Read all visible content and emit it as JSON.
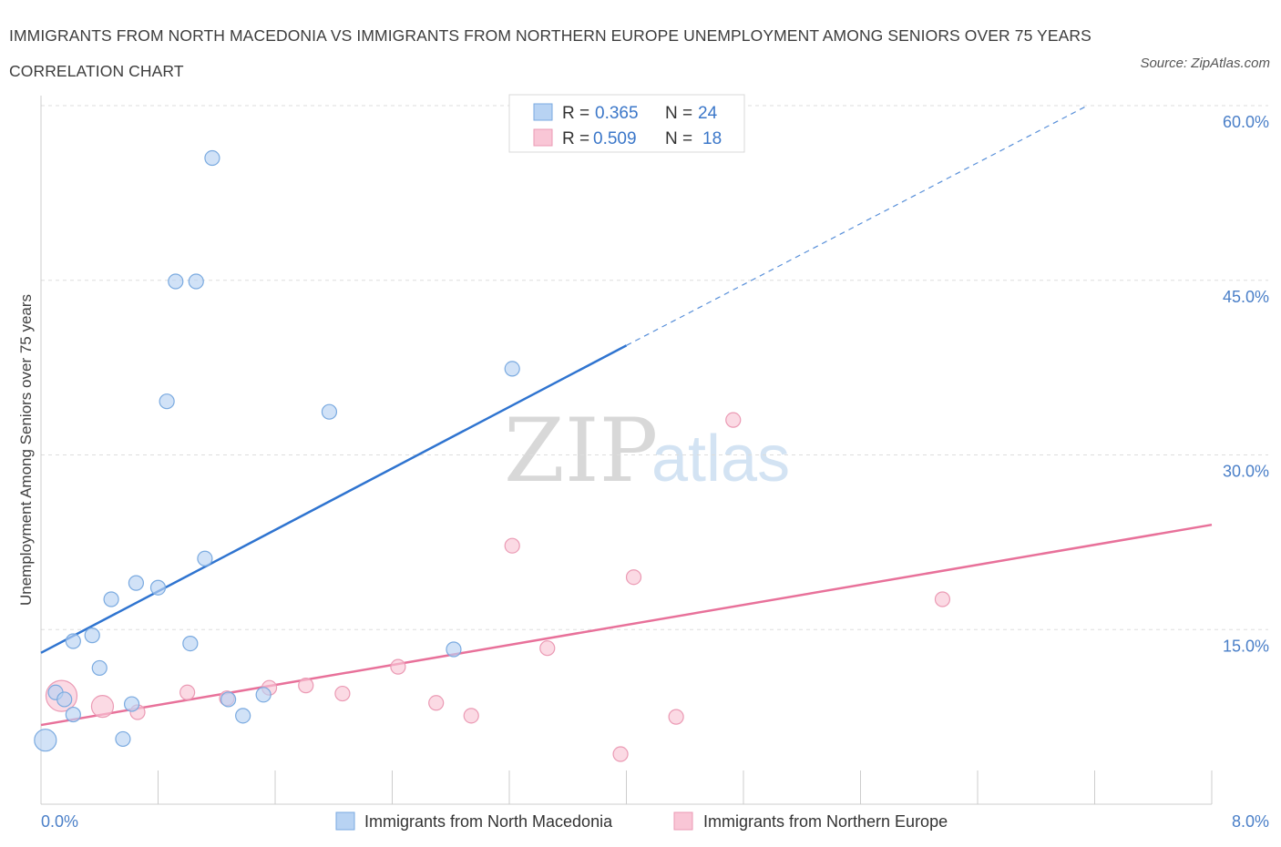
{
  "title": "IMMIGRANTS FROM NORTH MACEDONIA VS IMMIGRANTS FROM NORTHERN EUROPE UNEMPLOYMENT AMONG SENIORS OVER 75 YEARS CORRELATION CHART",
  "source": "Source: ZipAtlas.com",
  "watermark": {
    "zip": "ZIP",
    "atlas": "atlas"
  },
  "colors": {
    "blue_fill": "#b8d3f3",
    "blue_stroke": "#7aaae0",
    "blue_line": "#2f74d0",
    "pink_fill": "#f9c6d6",
    "pink_stroke": "#eb9ab4",
    "pink_line": "#e8719a",
    "grid": "#dddddd",
    "tick_text": "#4a7fc8"
  },
  "legend": {
    "r_label": "R =",
    "n_label": "N =",
    "rows": [
      {
        "series": "blue",
        "r": "0.365",
        "n": "24"
      },
      {
        "series": "pink",
        "r": "0.509",
        "n": "18"
      }
    ]
  },
  "chart_data": {
    "type": "scatter",
    "title": "IMMIGRANTS FROM NORTH MACEDONIA VS IMMIGRANTS FROM NORTHERN EUROPE UNEMPLOYMENT AMONG SENIORS OVER 75 YEARS CORRELATION CHART",
    "xlabel": "",
    "ylabel": "Unemployment Among Seniors over 75 years",
    "xlim": [
      0,
      8
    ],
    "ylim": [
      0,
      60
    ],
    "x_tick_labels": [
      "0.0%",
      "8.0%"
    ],
    "y_ticks": [
      15,
      30,
      45,
      60
    ],
    "y_tick_labels": [
      "15.0%",
      "30.0%",
      "45.0%",
      "60.0%"
    ],
    "grid": true,
    "series": [
      {
        "name": "Immigrants from North Macedonia",
        "color": "blue",
        "points": [
          {
            "x": 0.03,
            "y": 5.5,
            "size": "large"
          },
          {
            "x": 0.1,
            "y": 9.6
          },
          {
            "x": 0.16,
            "y": 9.0
          },
          {
            "x": 0.22,
            "y": 7.7
          },
          {
            "x": 0.22,
            "y": 14.0
          },
          {
            "x": 0.35,
            "y": 14.5
          },
          {
            "x": 0.4,
            "y": 11.7
          },
          {
            "x": 0.48,
            "y": 17.6
          },
          {
            "x": 0.56,
            "y": 5.6
          },
          {
            "x": 0.62,
            "y": 8.6
          },
          {
            "x": 0.65,
            "y": 19.0
          },
          {
            "x": 0.8,
            "y": 18.6
          },
          {
            "x": 0.86,
            "y": 34.6
          },
          {
            "x": 0.92,
            "y": 44.9
          },
          {
            "x": 1.02,
            "y": 13.8
          },
          {
            "x": 1.06,
            "y": 44.9
          },
          {
            "x": 1.12,
            "y": 21.1
          },
          {
            "x": 1.17,
            "y": 55.5
          },
          {
            "x": 1.28,
            "y": 9.0
          },
          {
            "x": 1.38,
            "y": 7.6
          },
          {
            "x": 1.52,
            "y": 9.4
          },
          {
            "x": 1.97,
            "y": 33.7
          },
          {
            "x": 2.82,
            "y": 13.3
          },
          {
            "x": 3.22,
            "y": 37.4
          }
        ],
        "trend": {
          "x0": 0,
          "y0": 13.0,
          "x1": 4.0,
          "y1": 39.4,
          "dash_to_x": 7.15,
          "dash_to_y": 60.0
        }
      },
      {
        "name": "Immigrants from Northern Europe",
        "color": "pink",
        "points": [
          {
            "x": 0.14,
            "y": 9.3,
            "size": "xlarge"
          },
          {
            "x": 0.42,
            "y": 8.4,
            "size": "large"
          },
          {
            "x": 0.66,
            "y": 7.9
          },
          {
            "x": 1.0,
            "y": 9.6
          },
          {
            "x": 1.27,
            "y": 9.1
          },
          {
            "x": 1.56,
            "y": 10.0
          },
          {
            "x": 1.81,
            "y": 10.2
          },
          {
            "x": 2.06,
            "y": 9.5
          },
          {
            "x": 2.44,
            "y": 11.8
          },
          {
            "x": 2.7,
            "y": 8.7
          },
          {
            "x": 2.94,
            "y": 7.6
          },
          {
            "x": 3.22,
            "y": 22.2
          },
          {
            "x": 3.46,
            "y": 13.4
          },
          {
            "x": 3.96,
            "y": 4.3
          },
          {
            "x": 4.05,
            "y": 19.5
          },
          {
            "x": 4.34,
            "y": 7.5
          },
          {
            "x": 4.73,
            "y": 33.0
          },
          {
            "x": 6.16,
            "y": 17.6
          }
        ],
        "trend": {
          "x0": 0,
          "y0": 6.8,
          "x1": 8.0,
          "y1": 24.0
        }
      }
    ]
  },
  "bottom_legend": [
    {
      "series": "blue",
      "label": "Immigrants from North Macedonia"
    },
    {
      "series": "pink",
      "label": "Immigrants from Northern Europe"
    }
  ]
}
